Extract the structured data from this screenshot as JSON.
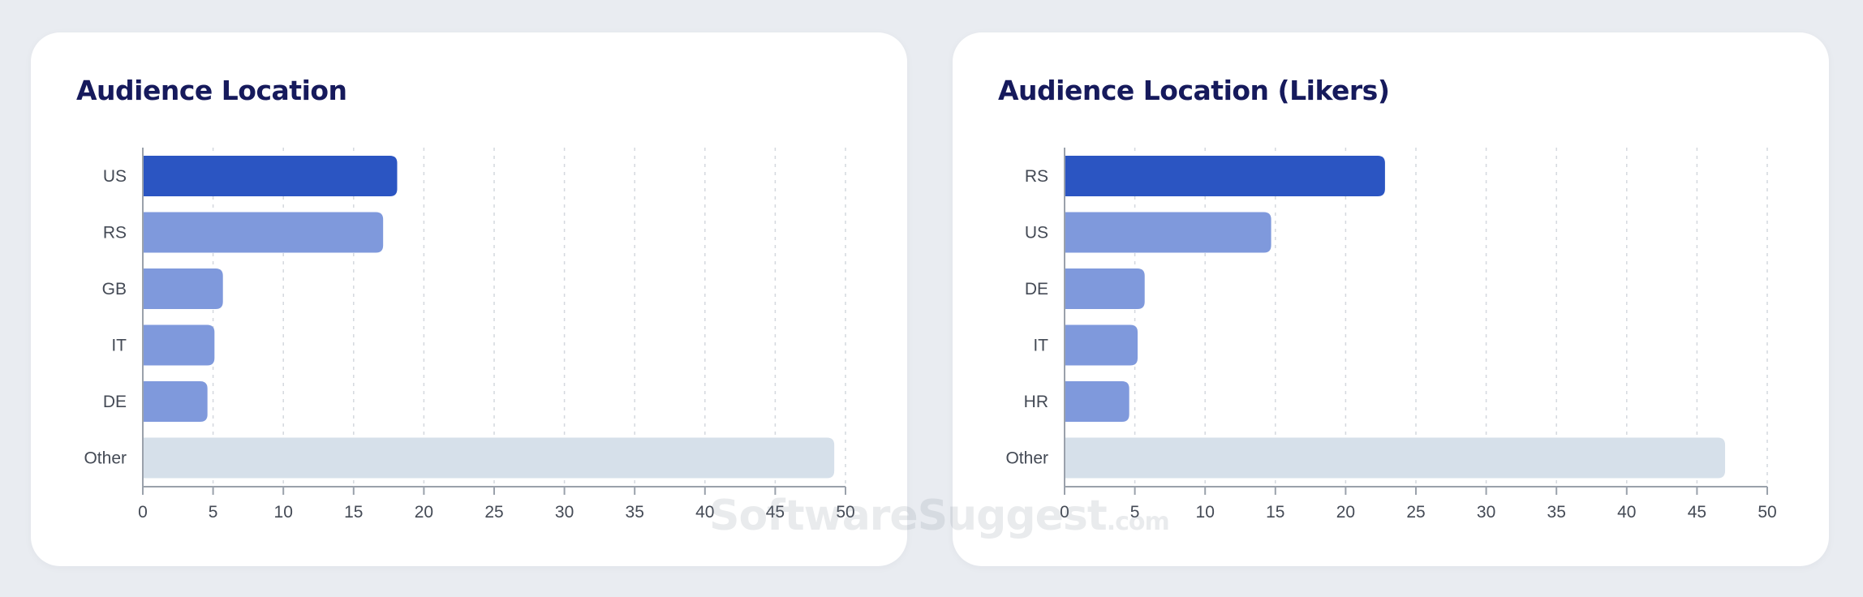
{
  "watermark": {
    "brand": "SoftwareSuggest",
    "suffix": ".com"
  },
  "colors": {
    "primary_bar": "#2b55c2",
    "secondary_bar": "#7f99dc",
    "other_bar": "#d6e0ea",
    "title": "#161a5c",
    "label": "#444a55",
    "grid": "#d4d8de",
    "axis": "#9aa1ab"
  },
  "chart_data": [
    {
      "type": "bar",
      "orientation": "horizontal",
      "title": "Audience Location",
      "categories": [
        "US",
        "RS",
        "GB",
        "IT",
        "DE",
        "Other"
      ],
      "values": [
        18.1,
        17.1,
        5.7,
        5.1,
        4.6,
        49.2
      ],
      "xlim": [
        0,
        50
      ],
      "xticks": [
        0,
        5,
        10,
        15,
        20,
        25,
        30,
        35,
        40,
        45,
        50
      ],
      "grid": true,
      "xlabel": "",
      "ylabel": ""
    },
    {
      "type": "bar",
      "orientation": "horizontal",
      "title": "Audience Location (Likers)",
      "categories": [
        "RS",
        "US",
        "DE",
        "IT",
        "HR",
        "Other"
      ],
      "values": [
        22.8,
        14.7,
        5.7,
        5.2,
        4.6,
        47.0
      ],
      "xlim": [
        0,
        50
      ],
      "xticks": [
        0,
        5,
        10,
        15,
        20,
        25,
        30,
        35,
        40,
        45,
        50
      ],
      "grid": true,
      "xlabel": "",
      "ylabel": ""
    }
  ]
}
